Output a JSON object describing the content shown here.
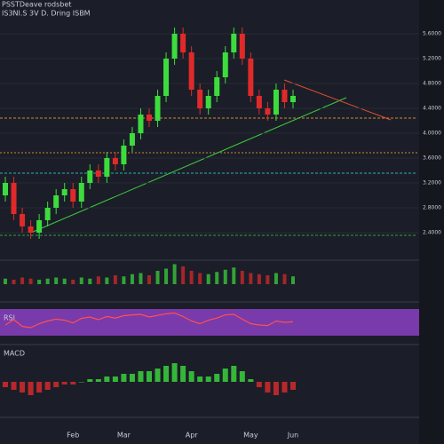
{
  "chart_data": {
    "type": "candlestick",
    "title": "PSSTDeave rodsbet",
    "subtitle": "IS3NI.S 3V D. Dring ISBM",
    "categories": [
      null,
      null,
      null,
      null,
      null,
      null,
      null,
      null,
      "Feb",
      null,
      null,
      null,
      null,
      null,
      "Mar",
      null,
      null,
      null,
      null,
      null,
      null,
      null,
      "Apr",
      null,
      null,
      null,
      null,
      null,
      null,
      "May",
      null,
      null,
      null,
      null,
      "Jun"
    ],
    "open": [
      3.0,
      3.2,
      2.7,
      2.5,
      2.4,
      2.6,
      2.8,
      3.0,
      3.1,
      2.9,
      3.2,
      3.4,
      3.3,
      3.6,
      3.5,
      3.8,
      4.0,
      4.3,
      4.2,
      4.6,
      5.2,
      5.6,
      5.3,
      4.7,
      4.4,
      4.6,
      4.9,
      5.3,
      5.6,
      5.2,
      4.6,
      4.4,
      4.3,
      4.7,
      4.5
    ],
    "high": [
      3.3,
      3.3,
      2.8,
      2.6,
      2.7,
      2.9,
      3.1,
      3.2,
      3.2,
      3.3,
      3.5,
      3.5,
      3.7,
      3.7,
      3.9,
      4.1,
      4.4,
      4.4,
      4.7,
      5.3,
      5.7,
      5.7,
      5.4,
      4.8,
      4.7,
      5.0,
      5.4,
      5.7,
      5.7,
      5.3,
      4.7,
      4.5,
      4.8,
      4.8,
      4.7
    ],
    "low": [
      2.9,
      2.6,
      2.4,
      2.3,
      2.3,
      2.5,
      2.7,
      2.9,
      2.8,
      2.8,
      3.1,
      3.2,
      3.2,
      3.4,
      3.4,
      3.7,
      3.9,
      4.1,
      4.1,
      4.5,
      5.1,
      5.2,
      4.6,
      4.3,
      4.3,
      4.5,
      4.8,
      5.2,
      5.1,
      4.5,
      4.3,
      4.2,
      4.2,
      4.4,
      4.4
    ],
    "close": [
      3.2,
      2.7,
      2.5,
      2.4,
      2.6,
      2.8,
      3.0,
      3.1,
      2.9,
      3.2,
      3.4,
      3.3,
      3.6,
      3.5,
      3.8,
      4.0,
      4.3,
      4.2,
      4.6,
      5.2,
      5.6,
      5.3,
      4.7,
      4.4,
      4.6,
      4.9,
      5.3,
      5.6,
      5.2,
      4.6,
      4.4,
      4.3,
      4.7,
      4.5,
      4.6
    ],
    "up_color": "#3ddc3d",
    "down_color": "#e02a2a",
    "ylim": [
      2.0,
      6.0
    ],
    "yticks": [
      {
        "value": 2.4,
        "label": "2.4000"
      },
      {
        "value": 2.8,
        "label": "2.8000"
      },
      {
        "value": 3.2,
        "label": "3.2000"
      },
      {
        "value": 3.6,
        "label": "3.6000"
      },
      {
        "value": 4.0,
        "label": "4.0000"
      },
      {
        "value": 4.4,
        "label": "4.4000"
      },
      {
        "value": 4.8,
        "label": "4.8000"
      },
      {
        "value": 5.2,
        "label": "5.2000"
      },
      {
        "value": 5.6,
        "label": "5.6000"
      }
    ],
    "volume": {
      "values": [
        5,
        4,
        6,
        5,
        4,
        5,
        6,
        5,
        4,
        6,
        5,
        7,
        6,
        8,
        7,
        9,
        10,
        8,
        12,
        14,
        18,
        16,
        12,
        10,
        9,
        11,
        13,
        15,
        12,
        10,
        9,
        8,
        10,
        9,
        7
      ],
      "ylim": [
        0,
        20
      ]
    },
    "oscillator": {
      "name": "RSI",
      "values": [
        40,
        60,
        35,
        30,
        45,
        55,
        62,
        58,
        48,
        65,
        70,
        60,
        72,
        66,
        75,
        78,
        80,
        70,
        76,
        82,
        85,
        72,
        55,
        45,
        58,
        66,
        78,
        80,
        62,
        45,
        40,
        38,
        55,
        50,
        52
      ],
      "ylim": [
        0,
        100
      ],
      "color": "#ff5050"
    },
    "macd": {
      "name": "MACD",
      "values": [
        -0.2,
        -0.3,
        -0.4,
        -0.5,
        -0.4,
        -0.3,
        -0.2,
        -0.1,
        -0.1,
        0.0,
        0.1,
        0.1,
        0.2,
        0.2,
        0.3,
        0.3,
        0.4,
        0.4,
        0.5,
        0.6,
        0.7,
        0.6,
        0.4,
        0.2,
        0.2,
        0.3,
        0.5,
        0.6,
        0.4,
        0.1,
        -0.2,
        -0.4,
        -0.5,
        -0.4,
        -0.3
      ],
      "ylim": [
        -1,
        1
      ]
    }
  }
}
